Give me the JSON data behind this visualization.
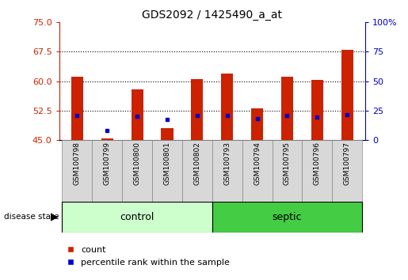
{
  "title": "GDS2092 / 1425490_a_at",
  "samples": [
    "GSM100798",
    "GSM100799",
    "GSM100800",
    "GSM100801",
    "GSM100802",
    "GSM100793",
    "GSM100794",
    "GSM100795",
    "GSM100796",
    "GSM100797"
  ],
  "groups": [
    "control",
    "control",
    "control",
    "control",
    "control",
    "septic",
    "septic",
    "septic",
    "septic",
    "septic"
  ],
  "red_values": [
    61.2,
    45.5,
    58.0,
    48.0,
    60.5,
    62.0,
    53.0,
    61.2,
    60.3,
    68.0
  ],
  "blue_values": [
    51.2,
    47.5,
    51.0,
    50.3,
    51.2,
    51.2,
    50.5,
    51.2,
    50.8,
    51.5
  ],
  "ymin": 45,
  "ymax": 75,
  "yticks_left": [
    45,
    52.5,
    60,
    67.5,
    75
  ],
  "yticks_right": [
    0,
    25,
    50,
    75,
    100
  ],
  "left_color": "#cc2200",
  "right_color": "#0000cc",
  "bar_color": "#cc2200",
  "dot_color": "#0000cc",
  "control_color_light": "#ccffcc",
  "septic_color": "#44cc44",
  "label_bg": "#d8d8d8",
  "legend_red": "count",
  "legend_blue": "percentile rank within the sample",
  "disease_label": "disease state",
  "control_label": "control",
  "septic_label": "septic"
}
